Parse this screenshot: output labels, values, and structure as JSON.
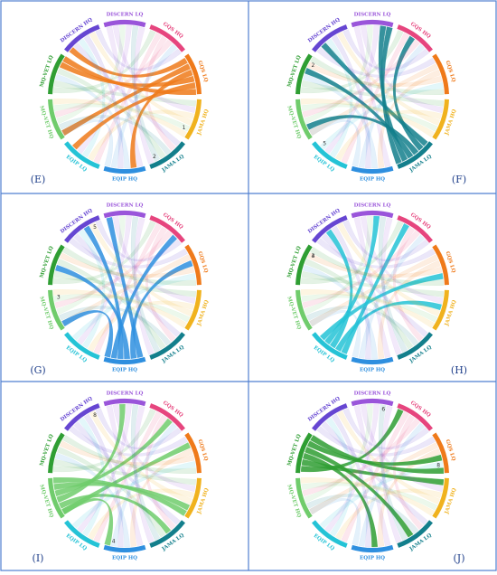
{
  "segments": [
    {
      "label": "MQ-VET LQ",
      "color": "#2f9e33"
    },
    {
      "label": "DISCERN HQ",
      "color": "#6646d2"
    },
    {
      "label": "DISCERN LQ",
      "color": "#9a55da"
    },
    {
      "label": "GQS HQ",
      "color": "#e6457e"
    },
    {
      "label": "GQS LQ",
      "color": "#ef7a1a"
    },
    {
      "label": "JAMA HQ",
      "color": "#f0b21e"
    },
    {
      "label": "JAMA LQ",
      "color": "#137f8c"
    },
    {
      "label": "EQIP HQ",
      "color": "#2e8fdf"
    },
    {
      "label": "EQIP LQ",
      "color": "#25c3d6"
    },
    {
      "label": "MQ-VET HQ",
      "color": "#70cc6c"
    }
  ],
  "panels": [
    {
      "label": "(E)",
      "focus": 4,
      "extra": 5
    },
    {
      "label": "(F)",
      "focus": 6,
      "extra": 0
    },
    {
      "label": "(G)",
      "focus": 7,
      "extra": 1
    },
    {
      "label": "(H)",
      "focus": 8,
      "extra": 0
    },
    {
      "label": "(I)",
      "focus": 9,
      "extra": 7
    },
    {
      "label": "(J)",
      "focus": 0,
      "extra": 4
    }
  ],
  "links": [
    [
      0,
      3
    ],
    [
      0,
      5
    ],
    [
      1,
      4
    ],
    [
      1,
      6
    ],
    [
      2,
      7
    ],
    [
      2,
      5
    ],
    [
      3,
      8
    ],
    [
      3,
      6
    ],
    [
      4,
      9
    ],
    [
      4,
      7
    ],
    [
      5,
      8
    ],
    [
      6,
      9
    ],
    [
      7,
      0
    ],
    [
      8,
      1
    ],
    [
      9,
      2
    ],
    [
      0,
      6
    ],
    [
      1,
      7
    ],
    [
      2,
      8
    ],
    [
      3,
      9
    ],
    [
      4,
      0
    ],
    [
      5,
      1
    ],
    [
      6,
      2
    ],
    [
      7,
      3
    ],
    [
      8,
      4
    ],
    [
      9,
      5
    ],
    [
      0,
      4
    ],
    [
      2,
      6
    ],
    [
      5,
      9
    ],
    [
      1,
      3
    ],
    [
      7,
      9
    ]
  ],
  "tick_numbers": [
    "1",
    "2",
    "5",
    "3",
    "4",
    "8",
    "6"
  ]
}
